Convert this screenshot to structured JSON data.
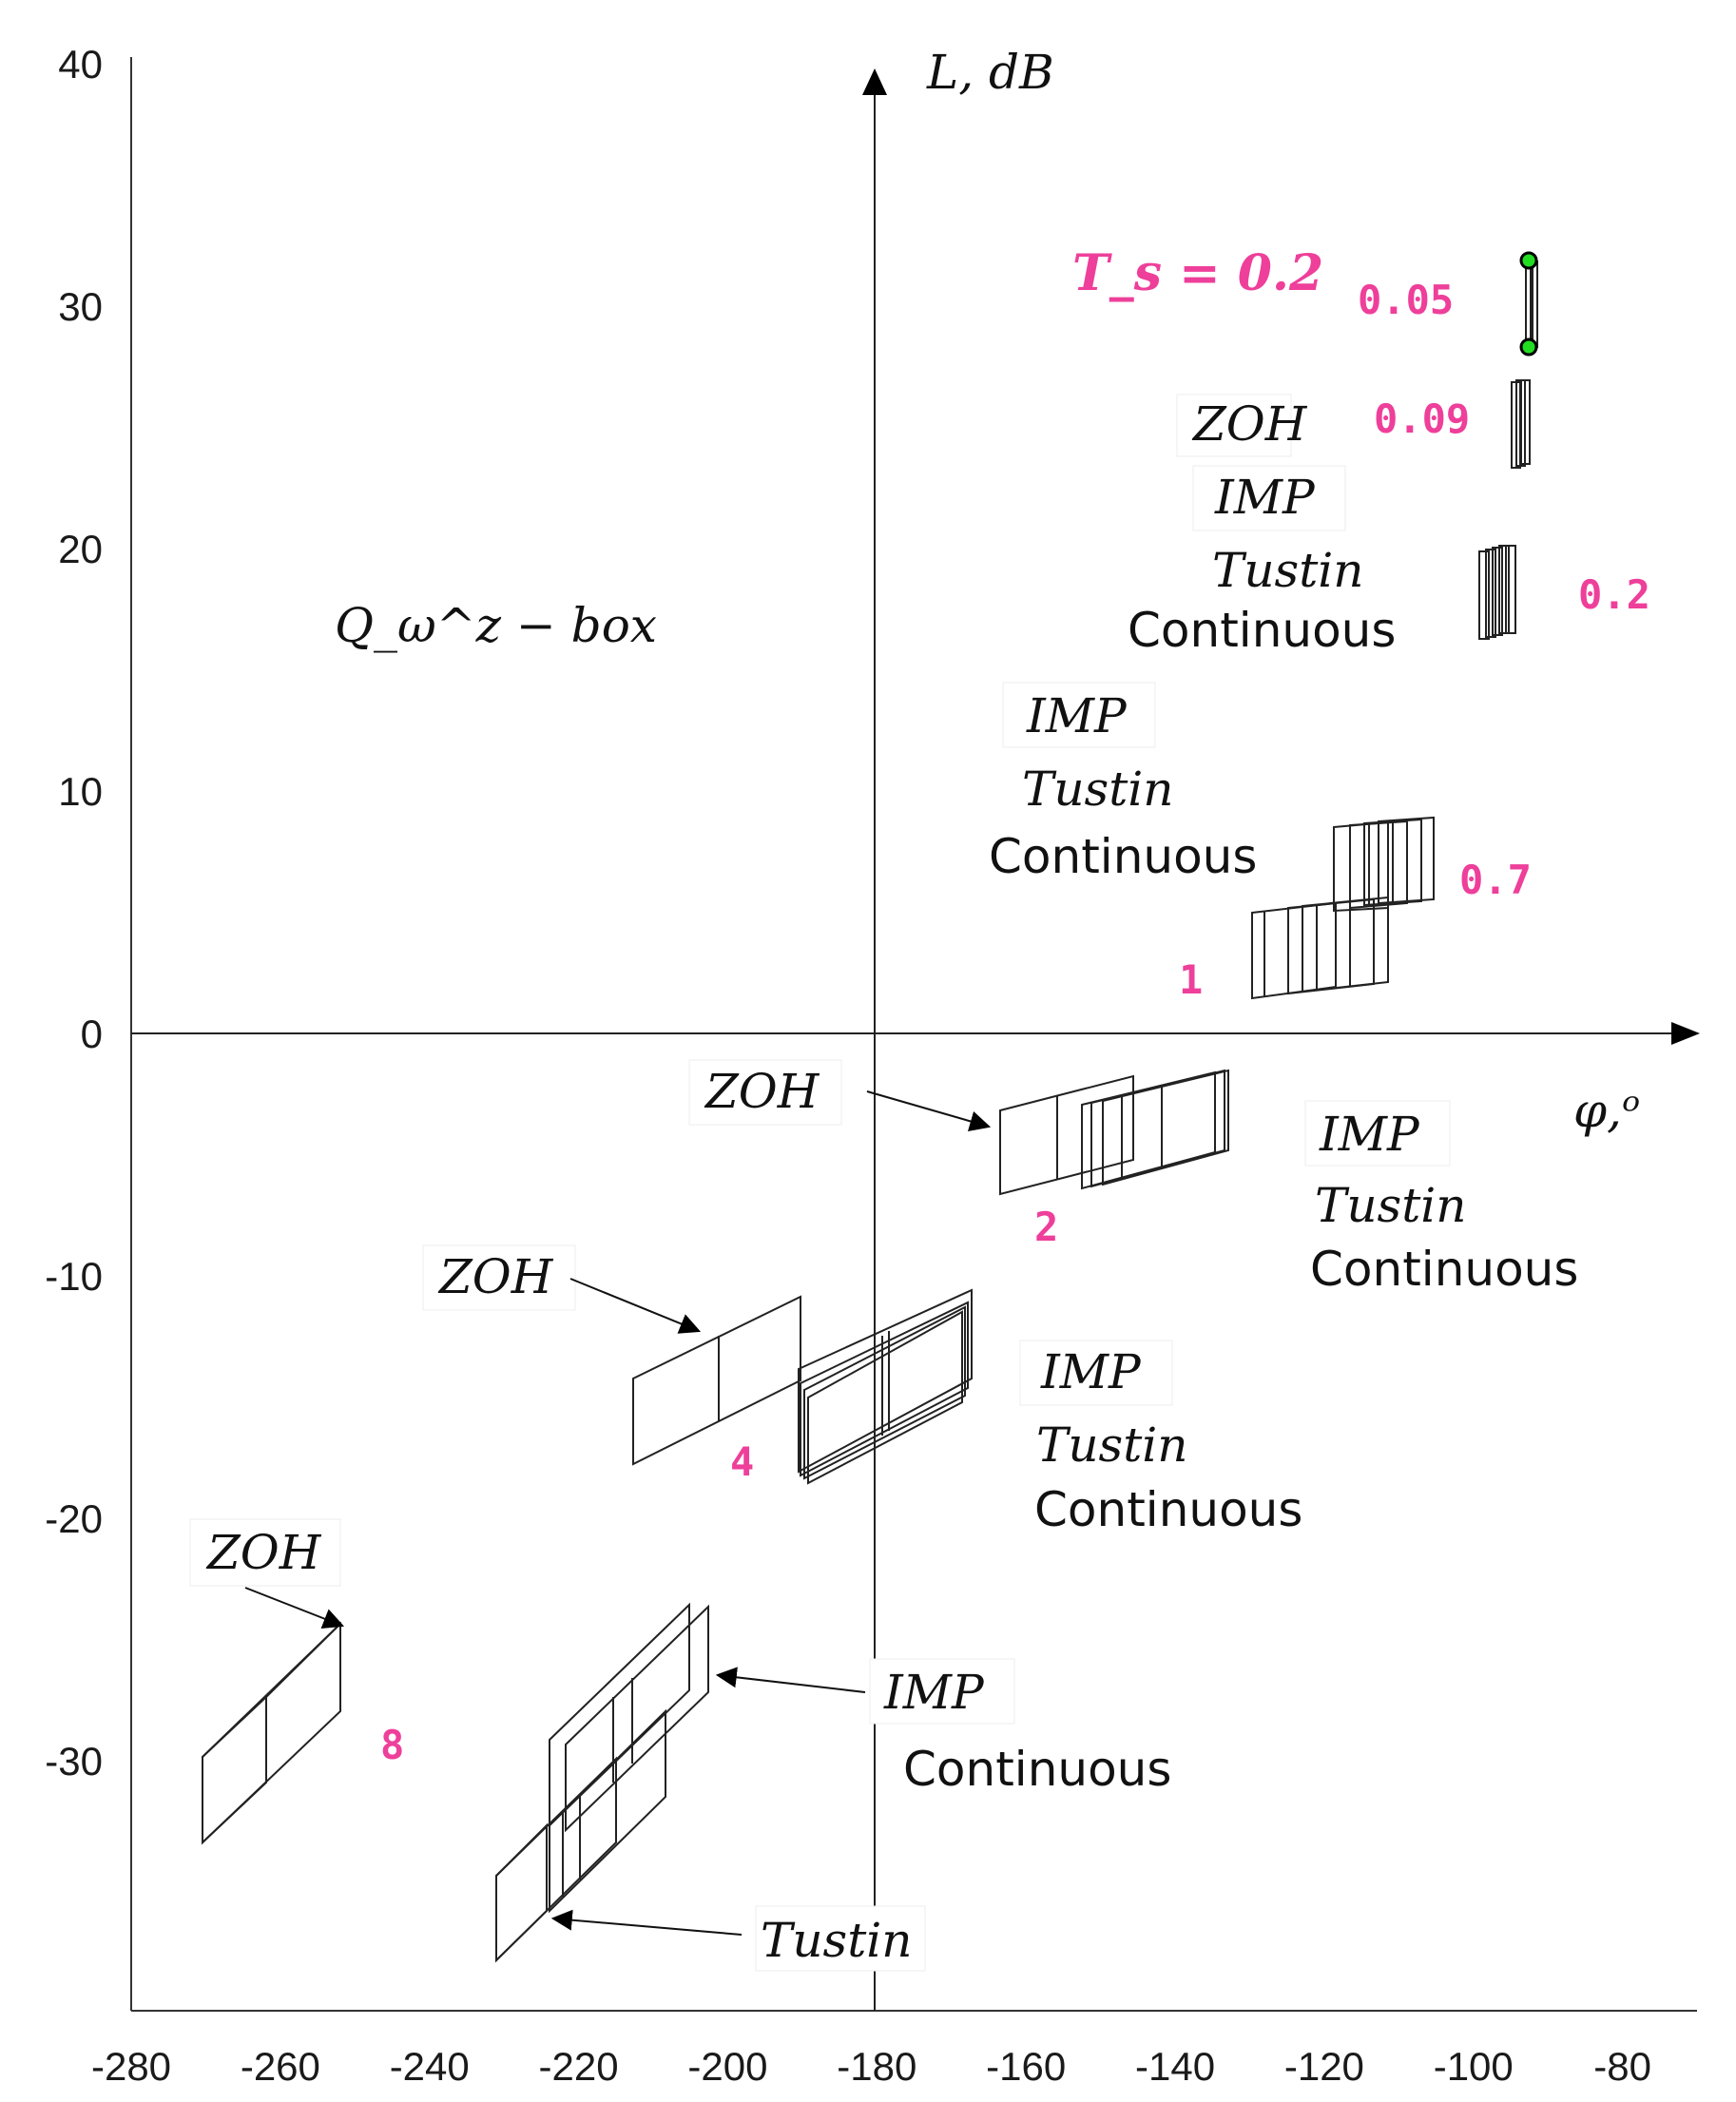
{
  "chart_data": {
    "type": "line",
    "title": "",
    "xlabel": "φ,ᵒ",
    "ylabel": "L, dB",
    "xlim": [
      -280,
      -70
    ],
    "ylim": [
      -40,
      40
    ],
    "x_ticks": [
      "-280",
      "-260",
      "-240",
      "-220",
      "-200",
      "-180",
      "-160",
      "-140",
      "-120",
      "-100",
      "-80"
    ],
    "y_ticks": [
      "40",
      "30",
      "20",
      "10",
      "0",
      "-10",
      "-20",
      "-30"
    ],
    "box_label": "Q_ω^z − box",
    "sampling_periods": [
      {
        "label": "T_s = 0.2",
        "note": "title of sampling period annotations"
      },
      {
        "label": "0.05",
        "center": [
          -92,
          30
        ]
      },
      {
        "label": "0.09",
        "center": [
          -94,
          25
        ]
      },
      {
        "label": "0.2",
        "center": [
          -97,
          18
        ]
      },
      {
        "label": "0.7",
        "center": [
          -112,
          6
        ]
      },
      {
        "label": "1",
        "center": [
          -122,
          3
        ]
      },
      {
        "label": "2",
        "center": [
          -150,
          -4
        ]
      },
      {
        "label": "4",
        "center": [
          -188,
          -15
        ]
      },
      {
        "label": "8",
        "center": [
          -260,
          -28
        ]
      }
    ],
    "series": [
      {
        "name": "Ts=0.05 boxes",
        "phase": [
          -93,
          -92
        ],
        "gain": [
          28,
          32
        ]
      },
      {
        "name": "Ts=0.09 boxes",
        "phase": [
          -95,
          -93
        ],
        "gain": [
          23,
          27
        ]
      },
      {
        "name": "Ts=0.2 boxes",
        "phase": [
          -98,
          -96
        ],
        "gain": [
          16.5,
          20
        ]
      },
      {
        "name": "Ts=0.7 boxes",
        "phase": [
          -115,
          -105
        ],
        "gain": [
          3,
          9
        ]
      },
      {
        "name": "Ts=1 boxes",
        "phase": [
          -130,
          -112
        ],
        "gain": [
          1.3,
          5.2
        ]
      },
      {
        "name": "Ts=2 ZOH",
        "phase": [
          -164,
          -146
        ],
        "gain": [
          -6.7,
          -1.6
        ]
      },
      {
        "name": "Ts=2 IMP/Tustin/Continuous",
        "phase": [
          -153,
          -133
        ],
        "gain": [
          -6.4,
          -1.5
        ]
      },
      {
        "name": "Ts=4 ZOH",
        "phase": [
          -212,
          -190
        ],
        "gain": [
          -17.7,
          -11
        ]
      },
      {
        "name": "Ts=4 IMP/Tustin/Continuous",
        "phase": [
          -190,
          -167
        ],
        "gain": [
          -18.3,
          -10.7
        ]
      },
      {
        "name": "Ts=8 ZOH",
        "phase": [
          -271,
          -252
        ],
        "gain": [
          -33,
          -24
        ]
      },
      {
        "name": "Ts=8 IMP/Continuous",
        "phase": [
          -224,
          -202
        ],
        "gain": [
          -32,
          -23
        ]
      },
      {
        "name": "Ts=8 Tustin",
        "phase": [
          -232,
          -209
        ],
        "gain": [
          -38,
          -26
        ]
      }
    ],
    "annotations": [
      {
        "id": "a1",
        "lines": [
          "ZOH"
        ]
      },
      {
        "id": "a2",
        "lines": [
          "IMP",
          "Tustin",
          "Continuous"
        ]
      },
      {
        "id": "a3",
        "lines": [
          "IMP",
          "Tustin",
          "Continuous"
        ]
      },
      {
        "id": "a4",
        "lines": [
          "ZOH"
        ]
      },
      {
        "id": "a5",
        "lines": [
          "IMP",
          "Tustin",
          "Continuous"
        ]
      },
      {
        "id": "a6",
        "lines": [
          "ZOH"
        ]
      },
      {
        "id": "a7",
        "lines": [
          "IMP",
          "Tustin",
          "Continuous"
        ]
      },
      {
        "id": "a8",
        "lines": [
          "ZOH"
        ]
      },
      {
        "id": "a9",
        "lines": [
          "IMP",
          "Continuous"
        ]
      },
      {
        "id": "a10",
        "lines": [
          "Tustin"
        ]
      }
    ],
    "colors": {
      "ts_label": "#ee3f9a",
      "marker": "#22dd22",
      "axis": "#1a1a1a"
    }
  }
}
